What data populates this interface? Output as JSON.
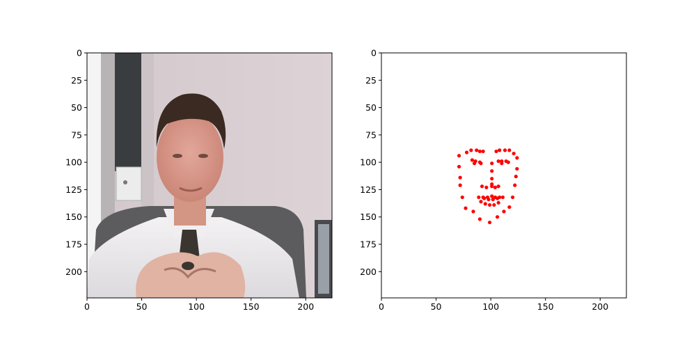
{
  "chart_data": [
    {
      "type": "image",
      "title": "",
      "xlabel": "",
      "ylabel": "",
      "xlim": [
        0,
        224
      ],
      "ylim": [
        224,
        0
      ],
      "xticks": [
        0,
        50,
        100,
        150,
        200
      ],
      "yticks": [
        0,
        25,
        50,
        75,
        100,
        125,
        150,
        175,
        200
      ],
      "image": {
        "subject": "man in white shirt and dark tie seated in office chair, hands clasped",
        "background_colors": [
          "#d9cfd1",
          "#3a3d3f",
          "#ffffff",
          "#5a5a5a"
        ]
      }
    },
    {
      "type": "scatter",
      "title": "",
      "xlabel": "",
      "ylabel": "",
      "xlim": [
        0,
        224
      ],
      "ylim": [
        224,
        0
      ],
      "xticks": [
        0,
        50,
        100,
        150,
        200
      ],
      "yticks": [
        0,
        25,
        50,
        75,
        100,
        125,
        150,
        175,
        200
      ],
      "grid": false,
      "point_color": "#ff0000",
      "series": [
        {
          "points": [
            [
              71,
              94
            ],
            [
              71,
              104
            ],
            [
              72,
              114
            ],
            [
              72,
              121
            ],
            [
              74,
              132
            ],
            [
              77,
              142
            ],
            [
              84,
              145
            ],
            [
              90,
              152
            ],
            [
              99,
              155
            ],
            [
              106,
              150
            ],
            [
              112,
              145
            ],
            [
              117,
              141
            ],
            [
              120,
              132
            ],
            [
              122,
              121
            ],
            [
              123,
              113
            ],
            [
              124,
              106
            ],
            [
              124,
              96
            ],
            [
              78,
              91
            ],
            [
              82,
              89
            ],
            [
              87,
              89
            ],
            [
              90,
              90
            ],
            [
              93,
              90
            ],
            [
              105,
              90
            ],
            [
              108,
              89
            ],
            [
              113,
              89
            ],
            [
              117,
              89
            ],
            [
              121,
              92
            ],
            [
              101,
              101
            ],
            [
              101,
              108
            ],
            [
              101,
              115
            ],
            [
              101,
              120
            ],
            [
              92,
              122
            ],
            [
              96,
              123
            ],
            [
              101,
              122
            ],
            [
              104,
              123
            ],
            [
              107,
              122
            ],
            [
              83,
              98
            ],
            [
              86,
              99
            ],
            [
              90,
              100
            ],
            [
              85,
              101
            ],
            [
              91,
              101
            ],
            [
              107,
              99
            ],
            [
              110,
              99
            ],
            [
              114,
              99
            ],
            [
              110,
              101
            ],
            [
              116,
              100
            ],
            [
              89,
              132
            ],
            [
              93,
              132
            ],
            [
              97,
              132
            ],
            [
              101,
              131
            ],
            [
              104,
              132
            ],
            [
              108,
              132
            ],
            [
              111,
              132
            ],
            [
              91,
              136
            ],
            [
              95,
              138
            ],
            [
              99,
              139
            ],
            [
              103,
              139
            ],
            [
              107,
              137
            ],
            [
              94,
              133
            ],
            [
              98,
              134
            ],
            [
              102,
              134
            ],
            [
              106,
              133
            ]
          ]
        }
      ]
    }
  ]
}
